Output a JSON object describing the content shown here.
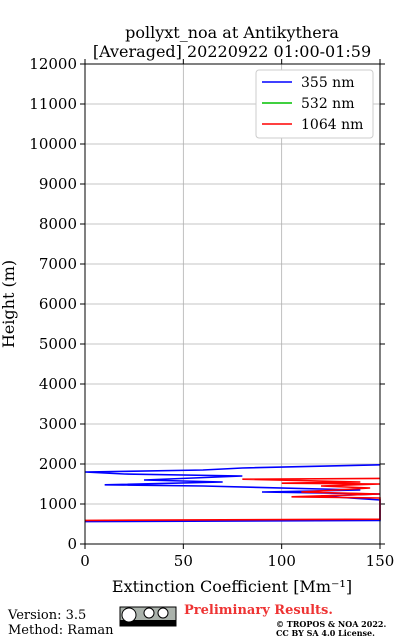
{
  "chart_data": {
    "type": "profile",
    "title": "pollyxt_noa at Antikythera",
    "subtitle": "[Averaged] 20220922 01:00-01:59",
    "xlabel": "Extinction Coefficient [Mm⁻¹]",
    "ylabel": "Height (m)",
    "xlim": [
      0,
      150
    ],
    "xticks": [
      0,
      50,
      100,
      150
    ],
    "ylim": [
      0,
      12000
    ],
    "yticks": [
      0,
      1000,
      2000,
      3000,
      4000,
      5000,
      6000,
      7000,
      8000,
      9000,
      10000,
      11000,
      12000
    ],
    "grid": true,
    "legend": "upper right",
    "series": [
      {
        "name": "355 nm",
        "color": "#0000ff",
        "heights": [
          560,
          590,
          1100,
          1200,
          1250,
          1300,
          1350,
          1450,
          1480,
          1550,
          1600,
          1700,
          1750,
          1800,
          1850,
          1900,
          1980
        ],
        "values": [
          0,
          150,
          150,
          120,
          150,
          90,
          140,
          60,
          10,
          70,
          30,
          80,
          20,
          0,
          60,
          80,
          150
        ]
      },
      {
        "name": "532 nm",
        "color": "#00c000",
        "heights": [],
        "values": []
      },
      {
        "name": "1064 nm",
        "color": "#ff0000",
        "heights": [
          590,
          620,
          1150,
          1180,
          1250,
          1300,
          1400,
          1450,
          1500,
          1520,
          1550,
          1620,
          1640
        ],
        "values": [
          0,
          150,
          150,
          105,
          150,
          110,
          145,
          120,
          150,
          100,
          140,
          80,
          150
        ]
      }
    ],
    "footer": {
      "version": "Version: 3.5",
      "method": "Method: Raman",
      "status": "Preliminary Results.",
      "copyright": "© TROPOS & NOA 2022.",
      "license": "CC BY SA 4.0 License."
    }
  }
}
